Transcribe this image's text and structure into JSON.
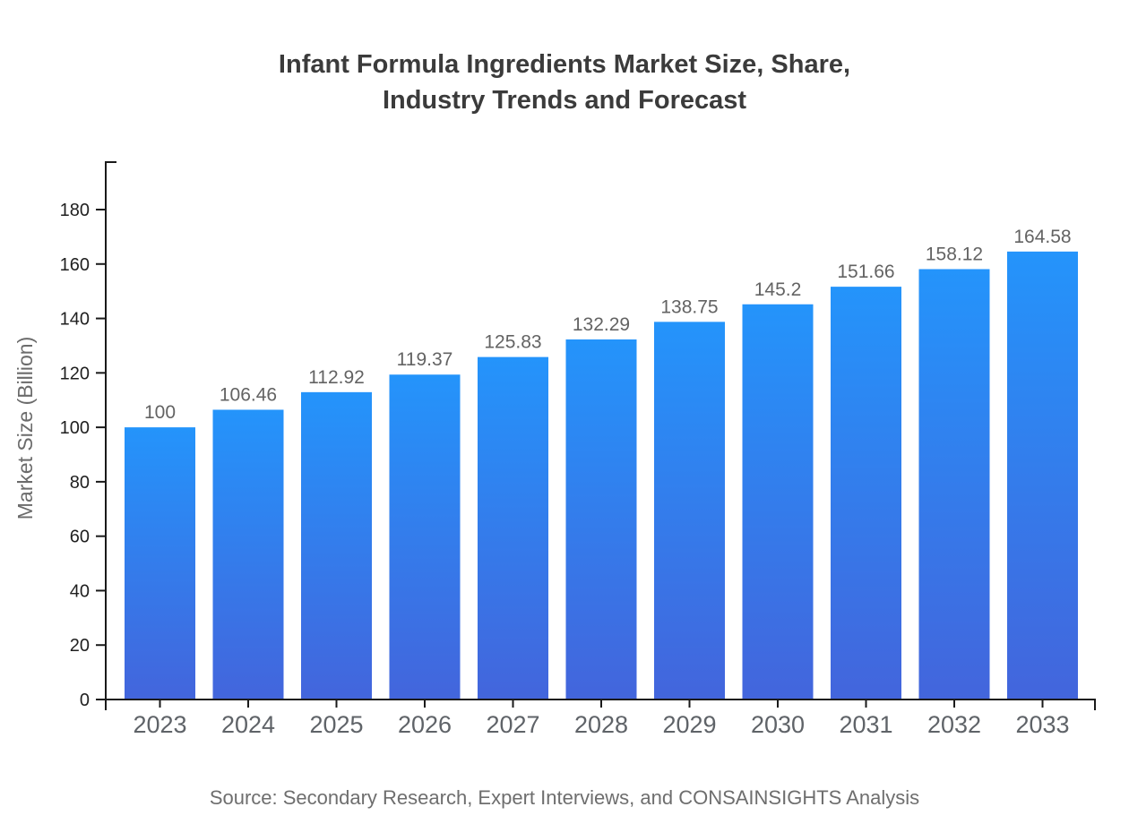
{
  "title": {
    "lines": [
      "Infant Formula Ingredients Market Size, Share,",
      "Industry Trends and Forecast"
    ]
  },
  "source": "Source: Secondary Research, Expert Interviews, and CONSAINSIGHTS Analysis",
  "chart_data": {
    "type": "bar",
    "title": "Infant Formula Ingredients Market Size, Share, Industry Trends and Forecast",
    "categories": [
      "2023",
      "2024",
      "2025",
      "2026",
      "2027",
      "2028",
      "2029",
      "2030",
      "2031",
      "2032",
      "2033"
    ],
    "values": [
      100,
      106.46,
      112.92,
      119.37,
      125.83,
      132.29,
      138.75,
      145.2,
      151.66,
      158.12,
      164.58
    ],
    "value_labels": [
      "100",
      "106.46",
      "112.92",
      "119.37",
      "125.83",
      "132.29",
      "138.75",
      "145.2",
      "151.66",
      "158.12",
      "164.58"
    ],
    "xlabel": "",
    "ylabel": "Market Size (Billion)",
    "ylim": [
      0,
      180
    ],
    "yticks": [
      0,
      20,
      40,
      60,
      80,
      100,
      120,
      140,
      160,
      180
    ],
    "grid": false,
    "legend_position": "none",
    "bar_gradient_top": "#2494fb",
    "bar_gradient_bottom": "#4365dc"
  },
  "colors": {
    "background": "#ffffff",
    "title": "#3b3b3b",
    "axis": "#1a1a1a",
    "ytick_label": "#1f1f1f",
    "xtick_label": "#5f6368",
    "value_label": "#636363",
    "ylabel": "#6b6b6b",
    "source": "#6e6e6e"
  }
}
